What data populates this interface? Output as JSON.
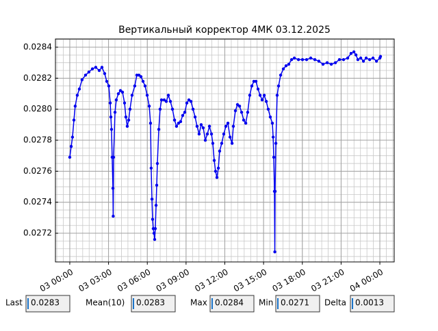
{
  "chart_data": {
    "type": "line",
    "title": "Вертикальный корректор 4МК 03.12.2025",
    "x": [
      0,
      0.11,
      0.21,
      0.32,
      0.42,
      0.58,
      0.74,
      0.95,
      1.22,
      1.48,
      1.75,
      2.01,
      2.28,
      2.49,
      2.7,
      2.86,
      3.02,
      3.13,
      3.18,
      3.23,
      3.28,
      3.34,
      3.36,
      3.39,
      3.5,
      3.6,
      3.76,
      3.92,
      4.08,
      4.24,
      4.34,
      4.45,
      4.56,
      4.66,
      4.82,
      5.03,
      5.19,
      5.35,
      5.51,
      5.67,
      5.83,
      5.99,
      6.15,
      6.25,
      6.3,
      6.36,
      6.41,
      6.46,
      6.52,
      6.57,
      6.62,
      6.68,
      6.73,
      6.78,
      6.89,
      6.99,
      7.1,
      7.31,
      7.47,
      7.63,
      7.79,
      7.95,
      8.11,
      8.26,
      8.42,
      8.58,
      8.74,
      8.9,
      9.06,
      9.22,
      9.38,
      9.54,
      9.7,
      9.85,
      10.01,
      10.17,
      10.33,
      10.49,
      10.65,
      10.81,
      10.97,
      11.07,
      11.18,
      11.28,
      11.39,
      11.5,
      11.6,
      11.76,
      11.92,
      12.08,
      12.24,
      12.4,
      12.56,
      12.66,
      12.82,
      12.98,
      13.14,
      13.3,
      13.46,
      13.62,
      13.77,
      13.93,
      14.09,
      14.25,
      14.41,
      14.57,
      14.73,
      14.89,
      15.05,
      15.21,
      15.36,
      15.52,
      15.68,
      15.74,
      15.79,
      15.84,
      15.87,
      15.89,
      15.95,
      16.05,
      16.16,
      16.32,
      16.53,
      16.74,
      16.95,
      17.17,
      17.38,
      17.7,
      18.01,
      18.33,
      18.65,
      18.97,
      19.28,
      19.6,
      19.92,
      20.24,
      20.56,
      20.87,
      21.19,
      21.51,
      21.77,
      21.99,
      22.15,
      22.3,
      22.52,
      22.73,
      22.94,
      23.21,
      23.47,
      23.74,
      24.0,
      24.05
    ],
    "series": [
      {
        "color": "#0000ee",
        "values": [
          0.02769,
          0.02776,
          0.02782,
          0.02793,
          0.02802,
          0.02809,
          0.02813,
          0.02819,
          0.02822,
          0.02824,
          0.02826,
          0.02827,
          0.02825,
          0.02827,
          0.02823,
          0.02818,
          0.02815,
          0.02804,
          0.02795,
          0.02787,
          0.02769,
          0.02749,
          0.02731,
          0.02769,
          0.02798,
          0.02806,
          0.0281,
          0.02812,
          0.02811,
          0.02804,
          0.02795,
          0.02789,
          0.02793,
          0.028,
          0.02809,
          0.02815,
          0.02822,
          0.02822,
          0.02821,
          0.02818,
          0.02815,
          0.02809,
          0.02802,
          0.02791,
          0.02762,
          0.02742,
          0.02729,
          0.02723,
          0.0272,
          0.02716,
          0.02723,
          0.02738,
          0.02751,
          0.02765,
          0.02787,
          0.028,
          0.02806,
          0.02806,
          0.02805,
          0.02809,
          0.02805,
          0.028,
          0.02793,
          0.02789,
          0.02791,
          0.02792,
          0.02796,
          0.02798,
          0.02804,
          0.02806,
          0.02805,
          0.028,
          0.02795,
          0.02789,
          0.02784,
          0.0279,
          0.02788,
          0.0278,
          0.02784,
          0.02789,
          0.02784,
          0.02778,
          0.02767,
          0.0276,
          0.02756,
          0.02762,
          0.02773,
          0.02778,
          0.02784,
          0.02789,
          0.02791,
          0.02782,
          0.02778,
          0.02789,
          0.02799,
          0.02803,
          0.02802,
          0.02798,
          0.02793,
          0.02791,
          0.02798,
          0.02809,
          0.02815,
          0.02818,
          0.02818,
          0.02813,
          0.02809,
          0.02806,
          0.02809,
          0.02805,
          0.028,
          0.02795,
          0.02791,
          0.02782,
          0.02769,
          0.02747,
          0.02708,
          0.02747,
          0.02778,
          0.02809,
          0.02815,
          0.02822,
          0.02826,
          0.02828,
          0.02829,
          0.02832,
          0.02833,
          0.02832,
          0.02832,
          0.02832,
          0.02833,
          0.02832,
          0.02831,
          0.02829,
          0.0283,
          0.02829,
          0.0283,
          0.02832,
          0.02832,
          0.02833,
          0.02836,
          0.02837,
          0.02835,
          0.02832,
          0.02833,
          0.02831,
          0.02833,
          0.02832,
          0.02833,
          0.02831,
          0.02833,
          0.02834
        ]
      }
    ],
    "xlim": [
      -1.11,
      25.11
    ],
    "xticks": [
      {
        "value": 0,
        "label": "03 00:00"
      },
      {
        "value": 3,
        "label": "03 03:00"
      },
      {
        "value": 6,
        "label": "03 06:00"
      },
      {
        "value": 9,
        "label": "03 09:00"
      },
      {
        "value": 12,
        "label": "03 12:00"
      },
      {
        "value": 15,
        "label": "03 15:00"
      },
      {
        "value": 18,
        "label": "03 18:00"
      },
      {
        "value": 21,
        "label": "03 21:00"
      },
      {
        "value": 24,
        "label": "04 00:00"
      }
    ],
    "ylim": [
      0.027015,
      0.028453
    ],
    "yticks": [
      0.0272,
      0.0274,
      0.0276,
      0.0278,
      {
        "value": 0.028,
        "label": "0.0280"
      },
      0.0282,
      0.0284
    ],
    "grid": true
  },
  "stats": [
    {
      "label": "Last",
      "value": "0.0283"
    },
    {
      "label": "Mean(10)",
      "value": "0.0283"
    },
    {
      "label": "Max",
      "value": "0.0284"
    },
    {
      "label": "Min",
      "value": "0.0271"
    },
    {
      "label": "Delta",
      "value": "0.0013"
    }
  ]
}
